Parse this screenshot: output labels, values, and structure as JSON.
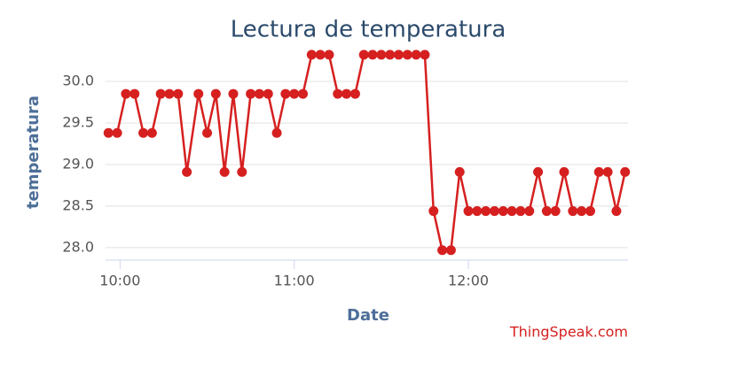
{
  "chart_data": {
    "type": "line",
    "title": "Lectura de temperatura",
    "x_label": "Date",
    "y_label": "temperatura",
    "credit": "ThingSpeak.com",
    "x": [
      "09:56",
      "09:59",
      "10:02",
      "10:05",
      "10:08",
      "10:11",
      "10:14",
      "10:17",
      "10:20",
      "10:23",
      "10:27",
      "10:30",
      "10:33",
      "10:36",
      "10:39",
      "10:42",
      "10:45",
      "10:48",
      "10:51",
      "10:54",
      "10:57",
      "11:00",
      "11:03",
      "11:06",
      "11:09",
      "11:12",
      "11:15",
      "11:18",
      "11:21",
      "11:24",
      "11:27",
      "11:30",
      "11:33",
      "11:36",
      "11:39",
      "11:42",
      "11:45",
      "11:48",
      "11:51",
      "11:54",
      "11:57",
      "12:00",
      "12:03",
      "12:06",
      "12:09",
      "12:12",
      "12:15",
      "12:18",
      "12:21",
      "12:24",
      "12:27",
      "12:30",
      "12:33",
      "12:36",
      "12:39",
      "12:42",
      "12:45",
      "12:48",
      "12:51",
      "12:54"
    ],
    "series": [
      {
        "name": "temperatura",
        "color": "#d62020",
        "values": [
          29.38,
          29.38,
          29.85,
          29.85,
          29.38,
          29.38,
          29.85,
          29.85,
          29.85,
          28.91,
          29.85,
          29.38,
          29.85,
          28.91,
          29.85,
          28.91,
          29.85,
          29.85,
          29.85,
          29.38,
          29.85,
          29.85,
          29.85,
          30.32,
          30.32,
          30.32,
          29.85,
          29.85,
          29.85,
          30.32,
          30.32,
          30.32,
          30.32,
          30.32,
          30.32,
          30.32,
          30.32,
          28.44,
          27.97,
          27.97,
          28.91,
          28.44,
          28.44,
          28.44,
          28.44,
          28.44,
          28.44,
          28.44,
          28.44,
          28.91,
          28.44,
          28.44,
          28.91,
          28.44,
          28.44,
          28.44,
          28.91,
          28.91,
          28.44,
          28.91
        ]
      }
    ],
    "xlim": [
      "09:55",
      "12:55"
    ],
    "xticks": [
      "10:00",
      "11:00",
      "12:00"
    ],
    "ylim": [
      27.85,
      30.5
    ],
    "yticks": [
      {
        "value": 28,
        "label": "28.0"
      },
      28.5,
      {
        "value": 29,
        "label": "29.0"
      },
      29.5,
      {
        "value": 30,
        "label": "30.0"
      }
    ],
    "grid": true
  }
}
